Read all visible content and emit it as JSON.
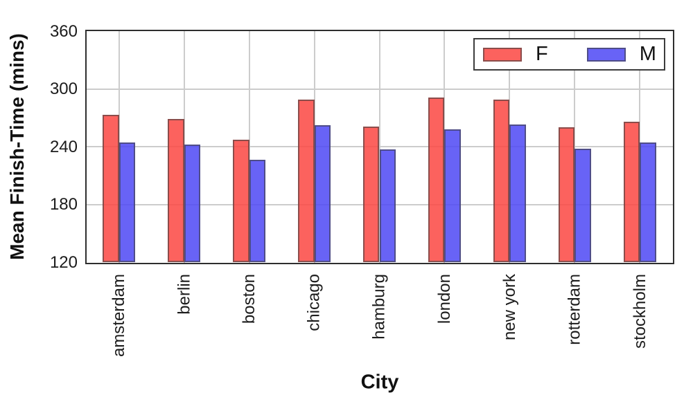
{
  "chart_data": {
    "type": "bar",
    "title": "",
    "xlabel": "City",
    "ylabel": "Mean Finish-Time (mins)",
    "categories": [
      "amsterdam",
      "berlin",
      "boston",
      "chicago",
      "hamburg",
      "london",
      "new york",
      "rotterdam",
      "stockholm"
    ],
    "series": [
      {
        "name": "F",
        "color": "rgba(252,70,66,0.85)",
        "values": [
          273,
          269,
          247,
          289,
          261,
          291,
          289,
          260,
          266
        ]
      },
      {
        "name": "M",
        "color": "rgba(78,72,244,0.85)",
        "values": [
          244,
          242,
          226,
          262,
          237,
          258,
          263,
          238,
          244
        ]
      }
    ],
    "ylim": [
      120,
      360
    ],
    "yticks": [
      120,
      180,
      240,
      300,
      360
    ],
    "grid": true,
    "grid_color": "#cccccc",
    "spine_color": "#2e2e2e",
    "bar_edge_color": "rgba(64,64,64,0.6)",
    "legend_position": "upper right",
    "legend_entries": [
      "F",
      "M"
    ]
  }
}
